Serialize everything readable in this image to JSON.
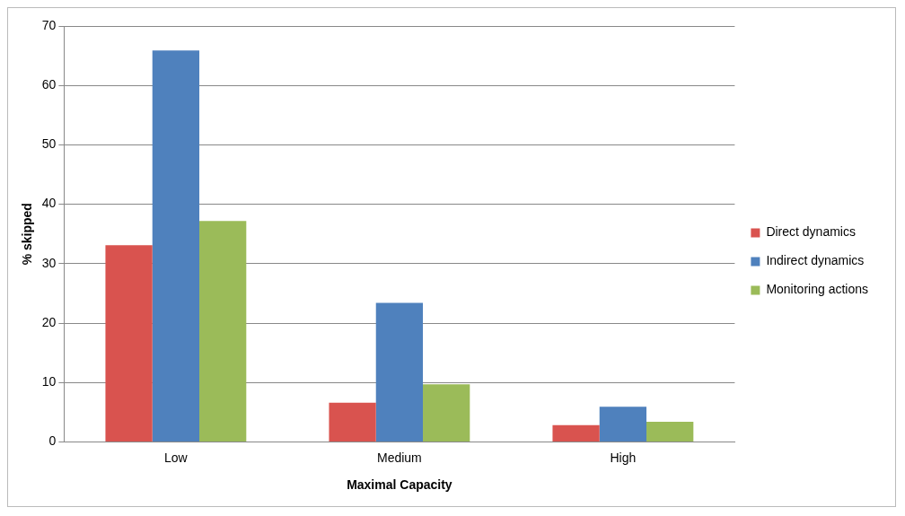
{
  "chart_data": {
    "type": "bar",
    "xlabel": "Maximal Capacity",
    "ylabel": "% skipped",
    "categories": [
      "Low",
      "Medium",
      "High"
    ],
    "series": [
      {
        "name": "Direct dynamics",
        "color": "#d9534f",
        "values": [
          33.1,
          6.6,
          2.8
        ]
      },
      {
        "name": "Indirect dynamics",
        "color": "#4f81bd",
        "values": [
          65.9,
          23.4,
          5.9
        ]
      },
      {
        "name": "Monitoring actions",
        "color": "#9bbb59",
        "values": [
          37.2,
          9.7,
          3.4
        ]
      }
    ],
    "ylim": [
      0,
      70
    ],
    "yticks": [
      0,
      10,
      20,
      30,
      40,
      50,
      60,
      70
    ],
    "grid": "y",
    "legend": "right"
  }
}
